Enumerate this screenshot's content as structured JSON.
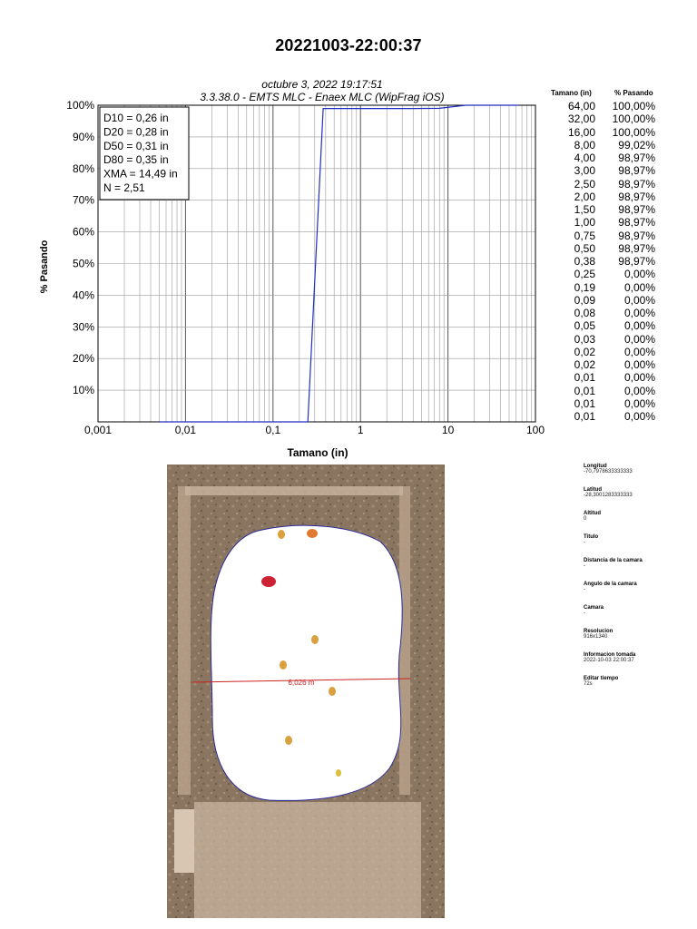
{
  "title": "20221003-22:00:37",
  "subtitle_date": "octubre 3, 2022 19:17:51",
  "subtitle_app": "3.3.38.0 -  EMTS MLC - Enaex MLC (WipFrag iOS)",
  "stats": [
    "D10 = 0,26 in",
    "D20 = 0,28 in",
    "D50 = 0,31 in",
    "D80 = 0,35 in",
    "XMA = 14,49 in",
    "N = 2,51"
  ],
  "chart_data": {
    "type": "line",
    "xlabel": "Tamano (in)",
    "ylabel": "% Pasando",
    "x_scale": "log",
    "xlim": [
      0.001,
      100
    ],
    "ylim": [
      0,
      100
    ],
    "grid": true,
    "x_ticks": [
      "0,001",
      "0,01",
      "0,1",
      "1",
      "10",
      "100"
    ],
    "y_ticks": [
      "10%",
      "20%",
      "30%",
      "40%",
      "50%",
      "60%",
      "70%",
      "80%",
      "90%",
      "100%"
    ],
    "series": [
      {
        "color": "#1f2fbf",
        "points": [
          [
            0.005,
            0
          ],
          [
            0.2,
            0
          ],
          [
            0.25,
            0
          ],
          [
            0.375,
            98.97
          ],
          [
            4,
            98.97
          ],
          [
            8,
            99.02
          ],
          [
            16,
            100
          ],
          [
            64,
            100
          ]
        ]
      }
    ]
  },
  "table": {
    "col1": "Tamano (in)",
    "col2": "% Pasando",
    "sizes": [
      "64,00",
      "32,00",
      "16,00",
      "8,00",
      "4,00",
      "3,00",
      "2,50",
      "2,00",
      "1,50",
      "1,00",
      "0,75",
      "0,50",
      "0,38",
      "0,25",
      "0,19",
      "0,09",
      "0,08",
      "0,05",
      "0,03",
      "0,02",
      "0,02",
      "0,01",
      "0,01",
      "0,01",
      "0,01"
    ],
    "passing": [
      "100,00%",
      "100,00%",
      "100,00%",
      "99,02%",
      "98,97%",
      "98,97%",
      "98,97%",
      "98,97%",
      "98,97%",
      "98,97%",
      "98,97%",
      "98,97%",
      "98,97%",
      "0,00%",
      "0,00%",
      "0,00%",
      "0,00%",
      "0,00%",
      "0,00%",
      "0,00%",
      "0,00%",
      "0,00%",
      "0,00%",
      "0,00%",
      "0,00%"
    ]
  },
  "photo": {
    "measure_label": "6,026 m",
    "colors": {
      "ground": "#8a7660",
      "frame": "#c9b5a0",
      "mask": "#ffffff",
      "outline": "#2a2a9a",
      "scale_line": "#cc2222",
      "rock": "#d9a040"
    }
  },
  "metadata": [
    {
      "label": "Longitud",
      "value": "-70,7978633333333"
    },
    {
      "label": "Latitud",
      "value": "-28,3001283333333"
    },
    {
      "label": "Altitud",
      "value": "0"
    },
    {
      "label": "Titulo",
      "value": "-"
    },
    {
      "label": "Distancia de la camara",
      "value": "-"
    },
    {
      "label": "Angulo de la camara",
      "value": "-"
    },
    {
      "label": "Camara",
      "value": "-"
    },
    {
      "label": "Resolucion",
      "value": "916x1340"
    },
    {
      "label": "Informacion tomada",
      "value": "2022-10-03 22:00:37"
    },
    {
      "label": "Editar tiempo",
      "value": "72s"
    }
  ]
}
